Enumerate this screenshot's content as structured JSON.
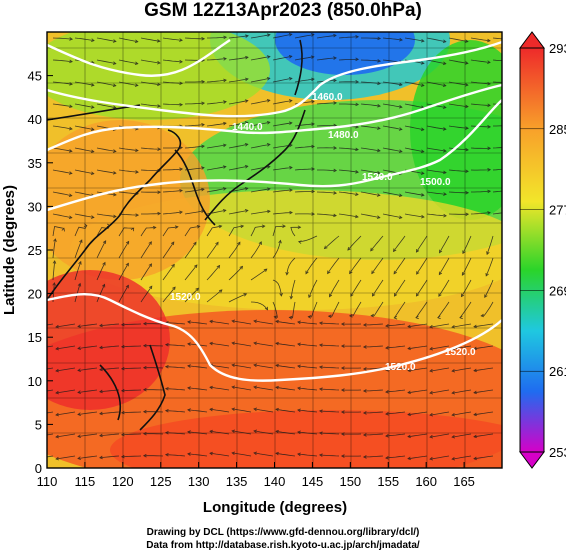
{
  "title": "GSM 12Z13Apr2023 (850.0hPa)",
  "x_axis": {
    "label": "Longitude (degrees)",
    "ticks": [
      "110",
      "115",
      "120",
      "125",
      "130",
      "135",
      "140",
      "145",
      "150",
      "155",
      "160",
      "165"
    ],
    "range": [
      110,
      170
    ]
  },
  "y_axis": {
    "label": "Latitude (degrees)",
    "ticks": [
      "0",
      "5",
      "10",
      "15",
      "20",
      "25",
      "30",
      "35",
      "40",
      "45"
    ],
    "range": [
      0,
      50
    ]
  },
  "colorbar": {
    "range": [
      253,
      293
    ],
    "tick_labels": [
      "293",
      "285",
      "277",
      "269",
      "261",
      "253"
    ],
    "colors": [
      "#d600c8",
      "#2a1cd0",
      "#1f6cf0",
      "#1fc8e0",
      "#2fd86a",
      "#2ad42a",
      "#b6e62a",
      "#f2e62a",
      "#f8a02a",
      "#f45a22",
      "#ee2a2a"
    ]
  },
  "contour_labels": [
    "1440.0",
    "1460.0",
    "1480.0",
    "1500.0",
    "1520.0",
    "1520.0",
    "1520.0",
    "1520.0"
  ],
  "credits": {
    "line1": "Drawing by DCL (https://www.gfd-dennou.org/library/dcl/)",
    "line2": "Data from http://database.rish.kyoto-u.ac.jp/arch/jmadata/"
  }
}
